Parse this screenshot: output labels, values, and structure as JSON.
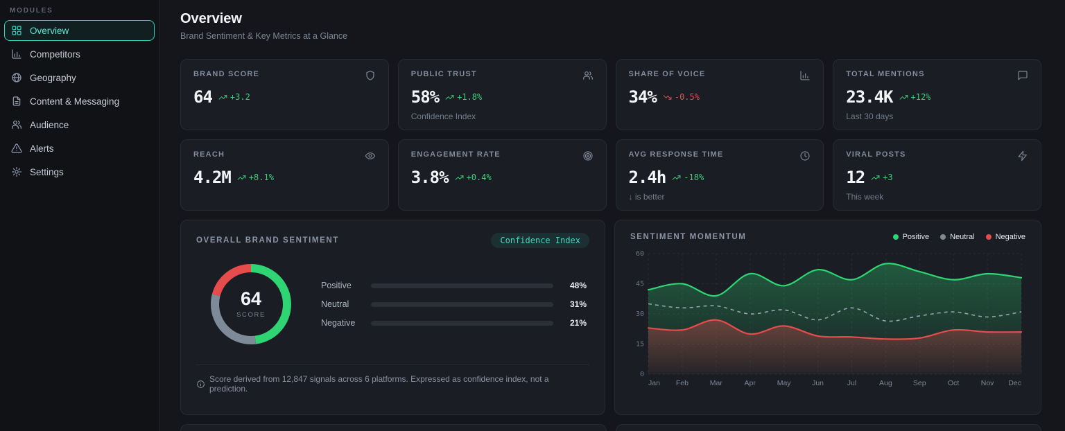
{
  "colors": {
    "accent_teal": "#2dd4bf",
    "positive_green": "#2fd573",
    "negative_red": "#e74c4c",
    "neutral_gray": "#7f8a99",
    "trend_up": "#3ecf7a",
    "trend_down": "#e05252",
    "card_bg": "#1a1d24",
    "page_bg": "#14161b"
  },
  "sidebar": {
    "section_label": "MODULES",
    "items": [
      {
        "label": "Overview",
        "icon": "layout-grid",
        "active": true
      },
      {
        "label": "Competitors",
        "icon": "chart-column",
        "active": false
      },
      {
        "label": "Geography",
        "icon": "globe",
        "active": false
      },
      {
        "label": "Content & Messaging",
        "icon": "file-text",
        "active": false
      },
      {
        "label": "Audience",
        "icon": "users",
        "active": false
      },
      {
        "label": "Alerts",
        "icon": "alert-triangle",
        "active": false
      },
      {
        "label": "Settings",
        "icon": "settings",
        "active": false
      }
    ]
  },
  "header": {
    "title": "Overview",
    "subtitle": "Brand Sentiment & Key Metrics at a Glance"
  },
  "kpis": [
    {
      "label": "BRAND SCORE",
      "value": "64",
      "trend": "+3.2",
      "trend_icon": "trending-up",
      "trend_positive": true,
      "icon": "shield",
      "subtitle": ""
    },
    {
      "label": "PUBLIC TRUST",
      "value": "58%",
      "trend": "+1.8%",
      "trend_icon": "trending-up",
      "trend_positive": true,
      "icon": "users",
      "subtitle": "Confidence Index"
    },
    {
      "label": "SHARE OF VOICE",
      "value": "34%",
      "trend": "-0.5%",
      "trend_icon": "trending-down",
      "trend_positive": false,
      "icon": "chart-column",
      "subtitle": ""
    },
    {
      "label": "TOTAL MENTIONS",
      "value": "23.4K",
      "trend": "+12%",
      "trend_icon": "trending-up",
      "trend_positive": true,
      "icon": "message-square",
      "subtitle": "Last 30 days"
    },
    {
      "label": "REACH",
      "value": "4.2M",
      "trend": "+8.1%",
      "trend_icon": "trending-up",
      "trend_positive": true,
      "icon": "eye",
      "subtitle": ""
    },
    {
      "label": "ENGAGEMENT RATE",
      "value": "3.8%",
      "trend": "+0.4%",
      "trend_icon": "trending-up",
      "trend_positive": true,
      "icon": "target",
      "subtitle": ""
    },
    {
      "label": "AVG RESPONSE TIME",
      "value": "2.4h",
      "trend": "-18%",
      "trend_icon": "trending-up",
      "trend_positive": true,
      "icon": "clock",
      "subtitle": "↓ is better"
    },
    {
      "label": "VIRAL POSTS",
      "value": "12",
      "trend": "+3",
      "trend_icon": "trending-up",
      "trend_positive": true,
      "icon": "zap",
      "subtitle": "This week"
    }
  ],
  "sentiment_card": {
    "title": "OVERALL BRAND SENTIMENT",
    "badge": "Confidence Index",
    "score": "64",
    "score_label": "SCORE",
    "rows": [
      {
        "label": "Positive",
        "value": 48,
        "pct": "48%",
        "color": "#2fd573"
      },
      {
        "label": "Neutral",
        "value": 31,
        "pct": "31%",
        "color": "#7f8a99"
      },
      {
        "label": "Negative",
        "value": 21,
        "pct": "21%",
        "color": "#e74c4c"
      }
    ],
    "footnote": "Score derived from 12,847 signals across 6 platforms. Expressed as confidence index, not a prediction."
  },
  "chart_data": {
    "type": "area",
    "title": "SENTIMENT MOMENTUM",
    "x": [
      "Jan",
      "Feb",
      "Mar",
      "Apr",
      "May",
      "Jun",
      "Jul",
      "Aug",
      "Sep",
      "Oct",
      "Nov",
      "Dec"
    ],
    "series": [
      {
        "name": "Positive",
        "color": "#2fd573",
        "style": "solid",
        "fill": true,
        "values": [
          42,
          45,
          39,
          50,
          44,
          52,
          47,
          55,
          51,
          47,
          50,
          48
        ]
      },
      {
        "name": "Neutral",
        "color": "#aab6c3",
        "style": "dashed",
        "fill": false,
        "values": [
          35,
          33,
          34,
          30,
          32,
          27,
          33,
          26.5,
          29,
          31,
          28.5,
          31
        ]
      },
      {
        "name": "Negative",
        "color": "#e74c4c",
        "style": "solid",
        "fill": true,
        "values": [
          23,
          22,
          27,
          20,
          24,
          19,
          18.5,
          17.5,
          18,
          22,
          21,
          21
        ]
      }
    ],
    "ylim": [
      0,
      60
    ],
    "yticks": [
      0,
      15,
      30,
      45,
      60
    ],
    "grid": true,
    "legend_position": "top-right"
  }
}
